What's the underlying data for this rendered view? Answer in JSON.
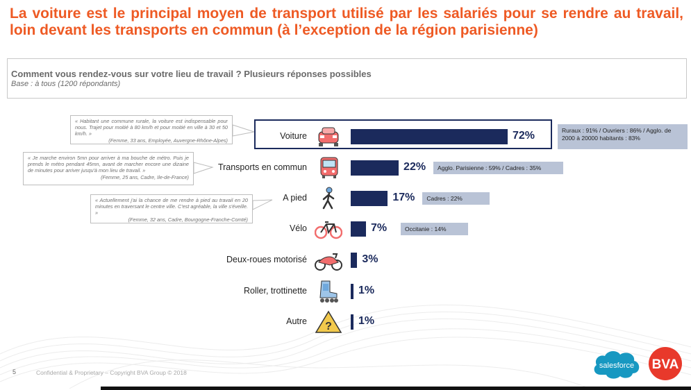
{
  "title": "La voiture est le principal moyen de transport utilisé par les salariés pour se rendre au travail, loin devant les transports en commun (à l’exception de la région parisienne)",
  "question": "Comment vous rendez-vous sur votre lieu de travail ? Plusieurs réponses possibles",
  "base": "Base : à tous (1200 répondants)",
  "quotes": [
    {
      "text": "« Habitant une commune rurale, la voiture est indispensable pour nous. Trajet pour moitié à 80 km/h et pour moitié en ville à 30 et 50 km/h. »",
      "author": "(Femme, 33 ans, Employée, Auvergne-Rhône-Alpes)"
    },
    {
      "text": "« Je marche environ 5mn pour arriver à ma bouche de métro. Puis je prends le métro pendant 45mn, avant de marcher encore une dizaine de minutes pour arriver jusqu'à mon lieu de travail. »",
      "author": "(Femme, 25 ans, Cadre, Ile-de-France)"
    },
    {
      "text": "« Actuellement j'ai la chance de me rendre à pied au travail en 20 minutes en traversant le centre ville. C'est agréable, la ville s'éveille. »",
      "author": "(Femme, 32 ans, Cadre, Bourgogne-Franche-Comté)"
    }
  ],
  "chart_data": {
    "type": "bar",
    "orientation": "horizontal",
    "categories": [
      "Voiture",
      "Transports en commun",
      "A pied",
      "Vélo",
      "Deux-roues motorisé",
      "Roller, trottinette",
      "Autre"
    ],
    "values": [
      72,
      22,
      17,
      7,
      3,
      1,
      1
    ],
    "value_labels": [
      "72%",
      "22%",
      "17%",
      "7%",
      "3%",
      "1%",
      "1%"
    ],
    "icons": [
      "car-icon",
      "bus-icon",
      "pedestrian-icon",
      "bicycle-icon",
      "motorbike-icon",
      "rollerskate-icon",
      "question-sign-icon"
    ],
    "notes": [
      "Ruraux : 91% / Ouvriers : 86% / Agglo. de 2000 à 20000 habitants : 83%",
      "Agglo. Parisienne : 59% / Cadres : 35%",
      "Cadres : 22%",
      "Occitanie : 14%",
      "",
      "",
      ""
    ],
    "bar_color": "#1b2a5c",
    "icon_color": "#f26d6d",
    "xlim": [
      0,
      100
    ]
  },
  "footer": {
    "page_number": "5",
    "text": "Confidential & Proprietary – Copyright BVA Group © 2018"
  },
  "logos": {
    "salesforce": "salesforce",
    "bva": "BVA"
  },
  "colors": {
    "title": "#ee5a24",
    "bar": "#1b2a5c",
    "note_bg": "#b9c3d6",
    "salesforce": "#1798c1",
    "bva": "#e8392b"
  }
}
